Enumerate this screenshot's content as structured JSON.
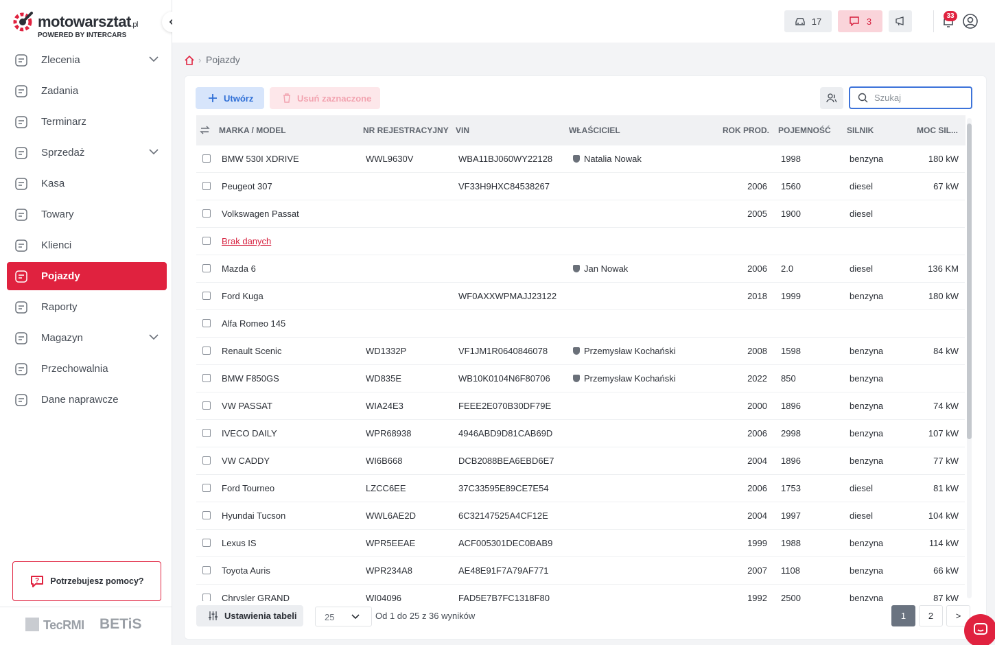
{
  "logo": {
    "brand": "motowarsztat",
    "tld": ".pl",
    "tagline": "POWERED BY INTERCARS"
  },
  "sidebar": {
    "items": [
      {
        "label": "Zlecenia",
        "expandable": true
      },
      {
        "label": "Zadania",
        "expandable": false
      },
      {
        "label": "Terminarz",
        "expandable": false
      },
      {
        "label": "Sprzedaż",
        "expandable": true
      },
      {
        "label": "Kasa",
        "expandable": false
      },
      {
        "label": "Towary",
        "expandable": false
      },
      {
        "label": "Klienci",
        "expandable": false
      },
      {
        "label": "Pojazdy",
        "expandable": false
      },
      {
        "label": "Raporty",
        "expandable": false
      },
      {
        "label": "Magazyn",
        "expandable": true
      },
      {
        "label": "Przechowalnia",
        "expandable": false
      },
      {
        "label": "Dane naprawcze",
        "expandable": false
      }
    ],
    "active": 7,
    "help": "Potrzebujesz pomocy?",
    "partners": [
      "TecRMI",
      "BETiS"
    ]
  },
  "header": {
    "vehicles_count": 17,
    "messages_count": 3,
    "notifications_count": 33
  },
  "breadcrumb": "Pojazdy",
  "toolbar": {
    "create": "Utwórz",
    "delete": "Usuń zaznaczone",
    "search_placeholder": "Szukaj"
  },
  "table": {
    "columns": [
      "MARKA / MODEL",
      "NR REJESTRACYJNY",
      "VIN",
      "WŁAŚCICIEL",
      "ROK PROD.",
      "POJEMNOŚĆ",
      "SILNIK",
      "MOC SIL..."
    ],
    "rows": [
      [
        "BMW 530I XDRIVE",
        "WWL9630V",
        "WBA11BJ060WY22128",
        "Natalia Nowak",
        null,
        "1998",
        "benzyna",
        "180 kW"
      ],
      [
        "Peugeot 307",
        null,
        "VF33H9HXC84538267",
        null,
        "2006",
        "1560",
        "diesel",
        "67 kW"
      ],
      [
        "Volkswagen Passat",
        null,
        null,
        null,
        "2005",
        "1900",
        "diesel",
        null
      ],
      [
        "Brak danych",
        null,
        null,
        null,
        null,
        null,
        null,
        null
      ],
      [
        "Mazda 6",
        null,
        null,
        "Jan Nowak",
        "2006",
        "2.0",
        "diesel",
        "136 KM"
      ],
      [
        "Ford Kuga",
        null,
        "WF0AXXWPMAJJ23122",
        null,
        "2018",
        "1999",
        "benzyna",
        "180 kW"
      ],
      [
        "Alfa Romeo 145",
        null,
        null,
        null,
        null,
        null,
        null,
        null
      ],
      [
        "Renault Scenic",
        "WD1332P",
        "VF1JM1R0640846078",
        "Przemysław Kochański",
        "2008",
        "1598",
        "benzyna",
        "84 kW"
      ],
      [
        "BMW F850GS",
        "WD835E",
        "WB10K0104N6F80706",
        "Przemysław Kochański",
        "2022",
        "850",
        "benzyna",
        null
      ],
      [
        "VW PASSAT",
        "WIA24E3",
        "FEEE2E070B30DF79E",
        null,
        "2000",
        "1896",
        "benzyna",
        "74 kW"
      ],
      [
        "IVECO DAILY",
        "WPR68938",
        "4946ABD9D81CAB69D",
        null,
        "2006",
        "2998",
        "benzyna",
        "107 kW"
      ],
      [
        "VW CADDY",
        "WI6B668",
        "DCB2088BEA6EBD6E7",
        null,
        "2004",
        "1896",
        "benzyna",
        "77 kW"
      ],
      [
        "Ford Tourneo",
        "LZCC6EE",
        "37C33595E89CE7E54",
        null,
        "2006",
        "1753",
        "diesel",
        "81 kW"
      ],
      [
        "Hyundai Tucson",
        "WWL6AE2D",
        "6C32147525A4CF12E",
        null,
        "2004",
        "1997",
        "diesel",
        "104 kW"
      ],
      [
        "Lexus IS",
        "WPR5EEAE",
        "ACF005301DEC0BAB9",
        null,
        "1999",
        "1988",
        "benzyna",
        "114 kW"
      ],
      [
        "Toyota Auris",
        "WPR234A8",
        "AE48E91F7A79AF771",
        null,
        "2007",
        "1108",
        "benzyna",
        "66 kW"
      ],
      [
        "Chrysler GRAND",
        "WI04096",
        "FAD5E7B7FC1318F80",
        null,
        "1992",
        "2500",
        "benzyna",
        "87 kW"
      ]
    ],
    "link_rows": [
      3
    ]
  },
  "footer": {
    "settings": "Ustawienia tabeli",
    "page_size": "25",
    "summary": "Od 1 do 25 z 36 wyników",
    "pages": [
      "1",
      "2"
    ],
    "current_page": 0,
    "next": ">"
  }
}
